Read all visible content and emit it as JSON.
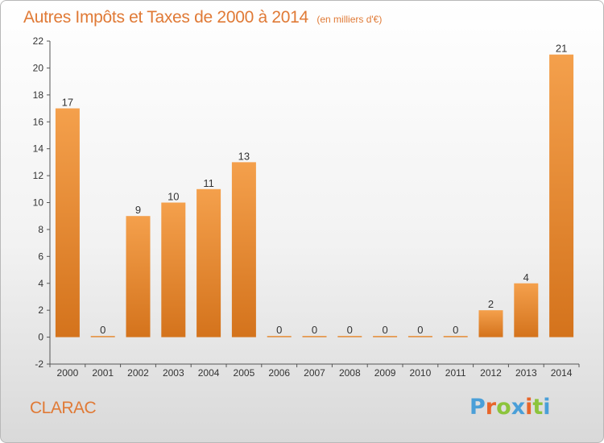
{
  "chart_data": {
    "type": "bar",
    "title": "Autres Impôts et Taxes de 2000 à 2014",
    "unit_note": "(en milliers d'€)",
    "categories": [
      "2000",
      "2001",
      "2002",
      "2003",
      "2004",
      "2005",
      "2006",
      "2007",
      "2008",
      "2009",
      "2010",
      "2011",
      "2012",
      "2013",
      "2014"
    ],
    "values": [
      17,
      0,
      9,
      10,
      11,
      13,
      0,
      0,
      0,
      0,
      0,
      0,
      2,
      4,
      21
    ],
    "ylim": [
      -2,
      22
    ],
    "yticks": [
      -2,
      0,
      2,
      4,
      6,
      8,
      10,
      12,
      14,
      16,
      18,
      20,
      22
    ],
    "grid": false,
    "bar_color": "#f4a04c",
    "bar_color_dark": "#d4731c"
  },
  "commune": "CLARAC",
  "logo": {
    "letters": [
      "P",
      "r",
      "o",
      "x",
      "i",
      "t",
      "i"
    ],
    "colors": [
      "#4a9fd8",
      "#e8662a",
      "#8cc43c",
      "#4a9fd8",
      "#e8662a",
      "#8cc43c",
      "#4a9fd8"
    ]
  }
}
